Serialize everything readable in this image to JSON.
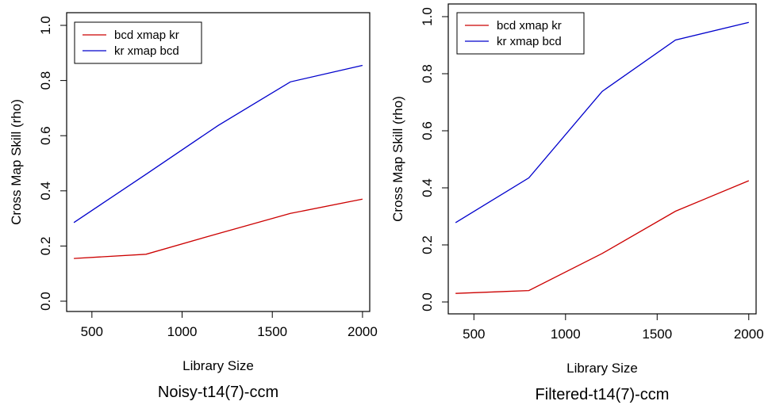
{
  "chart_data": [
    {
      "type": "line",
      "title": "",
      "caption": "Noisy-t14(7)-ccm",
      "xlabel": "Library Size",
      "ylabel": "Cross Map Skill (rho)",
      "xlim": [
        360,
        2040
      ],
      "ylim": [
        0,
        1.0
      ],
      "xticks": [
        "500",
        "1000",
        "1500",
        "2000"
      ],
      "yticks": [
        "0.0",
        "0.2",
        "0.4",
        "0.6",
        "0.8",
        "1.0"
      ],
      "legend_position": "top-left",
      "grid": false,
      "x": [
        400,
        800,
        1200,
        1600,
        2000
      ],
      "series": [
        {
          "name": "bcd xmap kr",
          "color": "#cc0000",
          "values": [
            0.155,
            0.17,
            0.245,
            0.318,
            0.37
          ]
        },
        {
          "name": "kr xmap bcd",
          "color": "#0000cc",
          "values": [
            0.285,
            0.46,
            0.637,
            0.795,
            0.855
          ]
        }
      ]
    },
    {
      "type": "line",
      "title": "",
      "caption": "Filtered-t14(7)-ccm",
      "xlabel": "Library Size",
      "ylabel": "Cross Map Skill (rho)",
      "xlim": [
        360,
        2040
      ],
      "ylim": [
        0,
        1.0
      ],
      "xticks": [
        "500",
        "1000",
        "1500",
        "2000"
      ],
      "yticks": [
        "0.0",
        "0.2",
        "0.4",
        "0.6",
        "0.8",
        "1.0"
      ],
      "legend_position": "top-left",
      "grid": false,
      "x": [
        400,
        800,
        1200,
        1600,
        2000
      ],
      "series": [
        {
          "name": "bcd xmap kr",
          "color": "#cc0000",
          "values": [
            0.03,
            0.04,
            0.17,
            0.318,
            0.425
          ]
        },
        {
          "name": "kr xmap bcd",
          "color": "#0000cc",
          "values": [
            0.278,
            0.435,
            0.738,
            0.918,
            0.98
          ]
        }
      ]
    }
  ]
}
